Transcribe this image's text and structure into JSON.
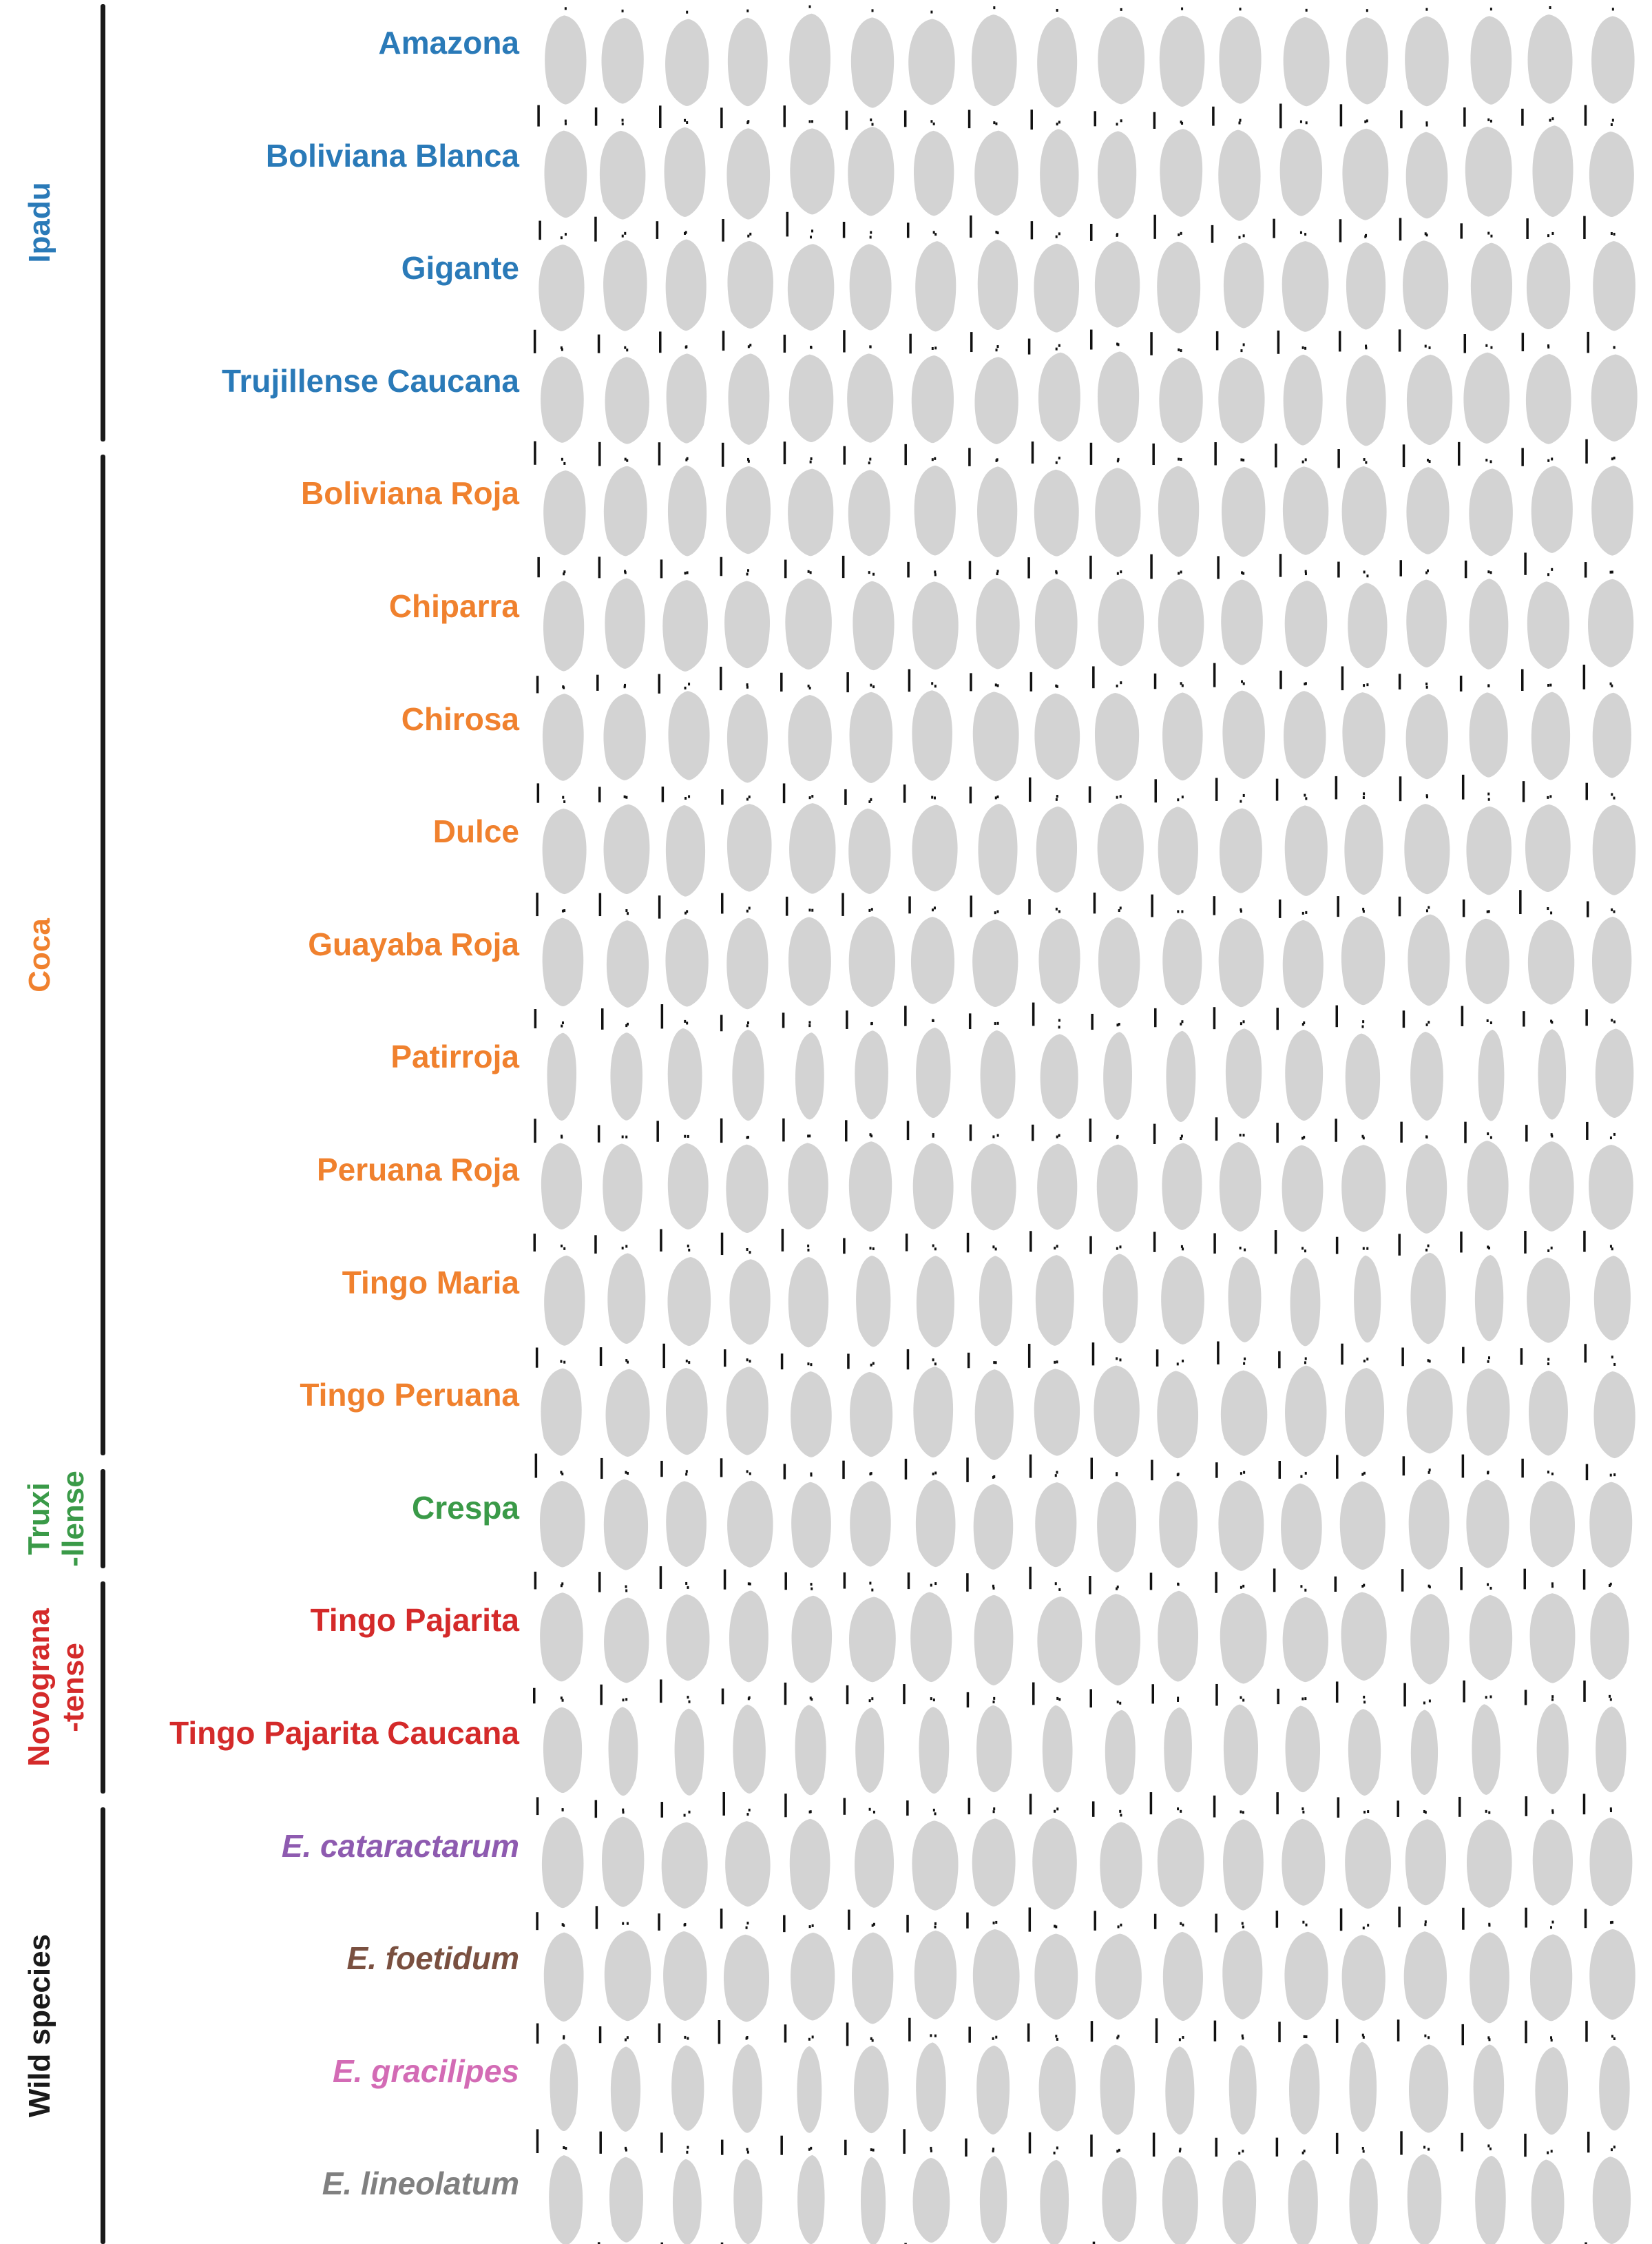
{
  "colors": {
    "ipadu": "#2a7ab8",
    "coca": "#f0812e",
    "truxillense": "#3a9a48",
    "novogranatense": "#d42a2a",
    "wild": "#1a1a1a",
    "leaf": "#d3d3d3",
    "scale": "#111111"
  },
  "groups": [
    {
      "label": "Ipadu",
      "color": "#2a7ab8",
      "first_row": 0,
      "last_row": 3
    },
    {
      "label": "Coca",
      "color": "#f0812e",
      "first_row": 4,
      "last_row": 12
    },
    {
      "label": "Truxi\n-llense",
      "color": "#3a9a48",
      "first_row": 13,
      "last_row": 13
    },
    {
      "label": "Novograna\n-tense",
      "color": "#d42a2a",
      "first_row": 14,
      "last_row": 15
    },
    {
      "label": "Wild species",
      "color": "#1a1a1a",
      "first_row": 16,
      "last_row": 19
    }
  ],
  "rows": [
    {
      "label": "Amazona",
      "color": "#2a7ab8",
      "italic": false
    },
    {
      "label": "Boliviana Blanca",
      "color": "#2a7ab8",
      "italic": false
    },
    {
      "label": "Gigante",
      "color": "#2a7ab8",
      "italic": false
    },
    {
      "label": "Trujillense Caucana",
      "color": "#2a7ab8",
      "italic": false
    },
    {
      "label": "Boliviana Roja",
      "color": "#f0812e",
      "italic": false
    },
    {
      "label": "Chiparra",
      "color": "#f0812e",
      "italic": false
    },
    {
      "label": "Chirosa",
      "color": "#f0812e",
      "italic": false
    },
    {
      "label": "Dulce",
      "color": "#f0812e",
      "italic": false
    },
    {
      "label": "Guayaba Roja",
      "color": "#f0812e",
      "italic": false
    },
    {
      "label": "Patirroja",
      "color": "#f0812e",
      "italic": false
    },
    {
      "label": "Peruana Roja",
      "color": "#f0812e",
      "italic": false
    },
    {
      "label": "Tingo Maria",
      "color": "#f0812e",
      "italic": false
    },
    {
      "label": "Tingo Peruana",
      "color": "#f0812e",
      "italic": false
    },
    {
      "label": "Crespa",
      "color": "#3a9a48",
      "italic": false
    },
    {
      "label": "Tingo Pajarita",
      "color": "#d42a2a",
      "italic": false
    },
    {
      "label": "Tingo Pajarita Caucana",
      "color": "#d42a2a",
      "italic": false
    },
    {
      "label": "E. cataractarum",
      "color": "#8e5bb0",
      "italic": true
    },
    {
      "label": "E. foetidum",
      "color": "#7a5040",
      "italic": true
    },
    {
      "label": "E. gracilipes",
      "color": "#d36bb5",
      "italic": true
    },
    {
      "label": "E. lineolatum",
      "color": "#808080",
      "italic": true
    }
  ],
  "leaves_per_row": 18
}
